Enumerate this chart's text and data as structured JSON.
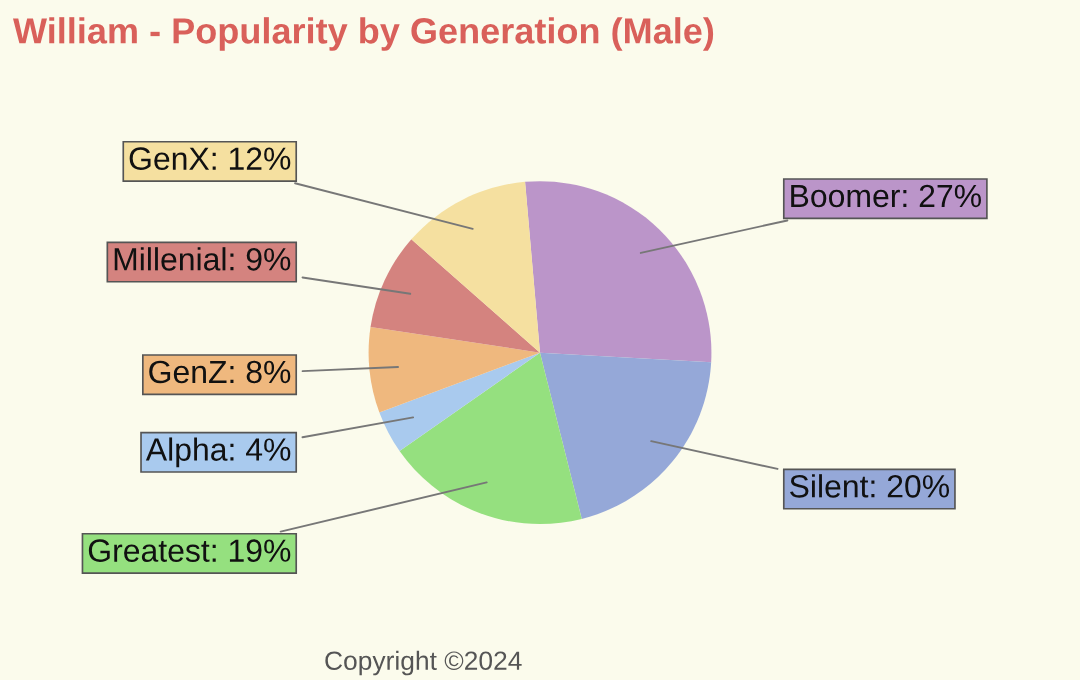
{
  "chart_data": {
    "type": "pie",
    "title": "William - Popularity by Generation (Male)",
    "categories": [
      "Boomer",
      "Silent",
      "Greatest",
      "Alpha",
      "GenZ",
      "Millenial",
      "GenX"
    ],
    "values": [
      27,
      20,
      19,
      4,
      8,
      9,
      12
    ],
    "colors": [
      "#bb95c9",
      "#95a8d8",
      "#95e07f",
      "#a9caee",
      "#efb87e",
      "#d4837f",
      "#f5e0a0"
    ],
    "value_labels": [
      "27%",
      "20%",
      "19%",
      "4%",
      "8%",
      "9%",
      "12%"
    ],
    "annotations": [
      "Copyright ©2024"
    ]
  }
}
